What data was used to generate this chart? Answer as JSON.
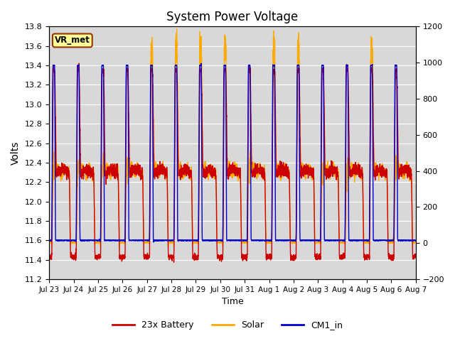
{
  "title": "System Power Voltage",
  "xlabel": "Time",
  "ylabel_left": "Volts",
  "ylim_left": [
    11.2,
    13.8
  ],
  "ylim_right": [
    -200,
    1200
  ],
  "background_color": "#ffffff",
  "plot_bg_color": "#d8d8d8",
  "grid_color": "#ffffff",
  "title_fontsize": 12,
  "tick_labels_x": [
    "Jul 23",
    "Jul 24",
    "Jul 25",
    "Jul 26",
    "Jul 27",
    "Jul 28",
    "Jul 29",
    "Jul 30",
    "Jul 31",
    "Aug 1",
    "Aug 2",
    "Aug 3",
    "Aug 4",
    "Aug 5",
    "Aug 6",
    "Aug 7"
  ],
  "legend_labels": [
    "23x Battery",
    "Solar",
    "CM1_in"
  ],
  "battery_color": "#cc0000",
  "solar_color": "#ffaa00",
  "cm1_color": "#0000cc",
  "solar_peak_days": [
    4,
    5,
    6,
    7,
    9,
    10,
    13
  ],
  "n_days": 15
}
